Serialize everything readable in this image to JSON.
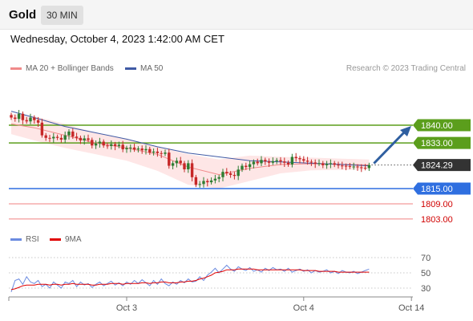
{
  "header": {
    "instrument": "Gold",
    "timeframe": "30 MIN",
    "datetime": "Wednesday, October 4, 2023 1:42:00 AM CET"
  },
  "legend": {
    "bollinger": "MA 20 + Bollinger Bands",
    "ma50": "MA 50",
    "credit": "Research © 2023 Trading Central",
    "rsi": "RSI",
    "ma9": "9MA"
  },
  "colors": {
    "candle_up": "#2e7d32",
    "candle_down": "#c62828",
    "bollinger_band": "#fddede",
    "ma20": "#f08a8a",
    "ma50": "#3f5aa5",
    "resistance": "#5b9e1c",
    "pivot": "#2f6fe0",
    "support": "#f08080",
    "last_price": "#333333",
    "arrow": "#2f5fa0",
    "rsi": "#6b8be0",
    "rsi_ma": "#e00000"
  },
  "chart_data": [
    {
      "type": "candlestick",
      "y_scale": {
        "price_a": 1840,
        "price_b": 1815
      },
      "levels": [
        {
          "price": 1840.0,
          "label": "1840.00",
          "kind": "resistance"
        },
        {
          "price": 1833.0,
          "label": "1833.00",
          "kind": "resistance"
        },
        {
          "price": 1824.29,
          "label": "1824.29",
          "kind": "last"
        },
        {
          "price": 1815.0,
          "label": "1815.00",
          "kind": "pivot"
        },
        {
          "price": 1809.0,
          "label": "1809.00",
          "kind": "support"
        },
        {
          "price": 1803.0,
          "label": "1803.00",
          "kind": "support"
        }
      ],
      "forecast_arrow": {
        "from": 1824.3,
        "to": 1840.0
      },
      "close": [
        1843.0,
        1842.5,
        1844.5,
        1842.0,
        1841.5,
        1843.0,
        1842.0,
        1841.0,
        1836.0,
        1835.0,
        1834.8,
        1835.4,
        1835.0,
        1834.3,
        1836.0,
        1837.5,
        1835.5,
        1835.0,
        1834.0,
        1834.8,
        1834.2,
        1832.0,
        1832.8,
        1833.5,
        1832.0,
        1831.8,
        1832.5,
        1831.8,
        1832.3,
        1830.5,
        1831.0,
        1831.2,
        1830.4,
        1830.8,
        1830.1,
        1830.6,
        1829.2,
        1829.6,
        1829.0,
        1828.7,
        1829.2,
        1824.0,
        1825.0,
        1826.0,
        1825.0,
        1822.6,
        1825.0,
        1819.5,
        1816.5,
        1816.8,
        1818.0,
        1817.5,
        1818.2,
        1818.9,
        1819.5,
        1821.6,
        1821.0,
        1820.4,
        1820.0,
        1822.5,
        1824.0,
        1823.5,
        1824.6,
        1825.6,
        1825.0,
        1826.3,
        1825.7,
        1825.2,
        1825.8,
        1826.2,
        1825.7,
        1825.2,
        1824.5,
        1827.5,
        1827.0,
        1826.6,
        1826.0,
        1825.6,
        1825.3,
        1824.8,
        1825.0,
        1824.2,
        1824.7,
        1825.0,
        1824.4,
        1824.1,
        1824.0,
        1823.9,
        1823.6,
        1823.7,
        1823.4,
        1823.2,
        1823.1,
        1824.29
      ],
      "bands": {
        "x": [
          0,
          6,
          14,
          22,
          30,
          38,
          46,
          54,
          62,
          70,
          78,
          86,
          93
        ],
        "upper": [
          1844.5,
          1843.5,
          1840.5,
          1837.0,
          1834.5,
          1831.5,
          1828.5,
          1826.5,
          1828.0,
          1827.5,
          1827.2,
          1826.8,
          1826.5
        ],
        "lower": [
          1836.5,
          1834.0,
          1831.0,
          1828.5,
          1826.0,
          1822.0,
          1816.5,
          1815.0,
          1818.0,
          1821.0,
          1822.2,
          1822.4,
          1822.5
        ]
      },
      "ma20": {
        "x": [
          0,
          6,
          14,
          22,
          30,
          38,
          46,
          54,
          62,
          70,
          78,
          86,
          93
        ],
        "values": [
          1840.5,
          1839.0,
          1836.0,
          1833.0,
          1831.0,
          1828.5,
          1823.5,
          1820.5,
          1823.0,
          1824.5,
          1824.8,
          1824.6,
          1824.3
        ]
      },
      "ma50": {
        "x": [
          0,
          6,
          14,
          22,
          30,
          38,
          46,
          54,
          62,
          70,
          78,
          86,
          93
        ],
        "values": [
          1845.5,
          1843.0,
          1839.5,
          1837.0,
          1834.5,
          1831.5,
          1829.0,
          1827.5,
          1826.0,
          1825.5,
          1825.0,
          1824.5,
          1824.0
        ]
      }
    },
    {
      "type": "line",
      "y_ticks": [
        70,
        50,
        30
      ],
      "x_ticks": [
        {
          "index": 30,
          "label": "Oct 3"
        },
        {
          "index": 76,
          "label": "Oct 4"
        },
        {
          "index": 104,
          "label": "Oct 14"
        }
      ],
      "rsi": [
        25,
        40,
        42,
        35,
        45,
        38,
        36,
        40,
        32,
        35,
        30,
        38,
        34,
        30,
        38,
        36,
        40,
        32,
        38,
        34,
        36,
        31,
        35,
        38,
        33,
        36,
        39,
        34,
        37,
        33,
        38,
        35,
        40,
        36,
        41,
        37,
        33,
        40,
        35,
        42,
        36,
        33,
        38,
        35,
        40,
        37,
        42,
        38,
        39,
        45,
        40,
        47,
        51,
        56,
        50,
        55,
        60,
        55,
        52,
        58,
        55,
        53,
        57,
        52,
        54,
        51,
        56,
        53,
        57,
        54,
        55,
        52,
        56,
        51,
        53,
        55,
        52,
        54,
        50,
        53,
        51,
        52,
        54,
        50,
        52,
        49,
        53,
        51,
        50,
        52,
        49,
        51,
        53,
        55
      ],
      "rsi_ma": [
        28,
        29,
        31,
        33,
        34,
        34,
        34,
        35,
        35,
        35,
        34,
        35,
        35,
        34,
        35,
        35,
        36,
        35,
        35,
        35,
        35,
        34,
        34,
        35,
        35,
        35,
        36,
        36,
        36,
        35,
        36,
        36,
        36,
        36,
        37,
        37,
        36,
        37,
        37,
        38,
        38,
        37,
        37,
        37,
        38,
        38,
        39,
        39,
        40,
        42,
        43,
        45,
        47,
        50,
        51,
        52,
        54,
        54,
        54,
        55,
        55,
        55,
        55,
        55,
        54,
        54,
        54,
        54,
        54,
        54,
        54,
        54,
        54,
        54,
        54,
        54,
        53,
        53,
        53,
        53,
        52,
        52,
        52,
        52,
        52,
        51,
        51,
        51,
        51,
        51,
        51,
        51,
        51,
        51
      ]
    }
  ]
}
